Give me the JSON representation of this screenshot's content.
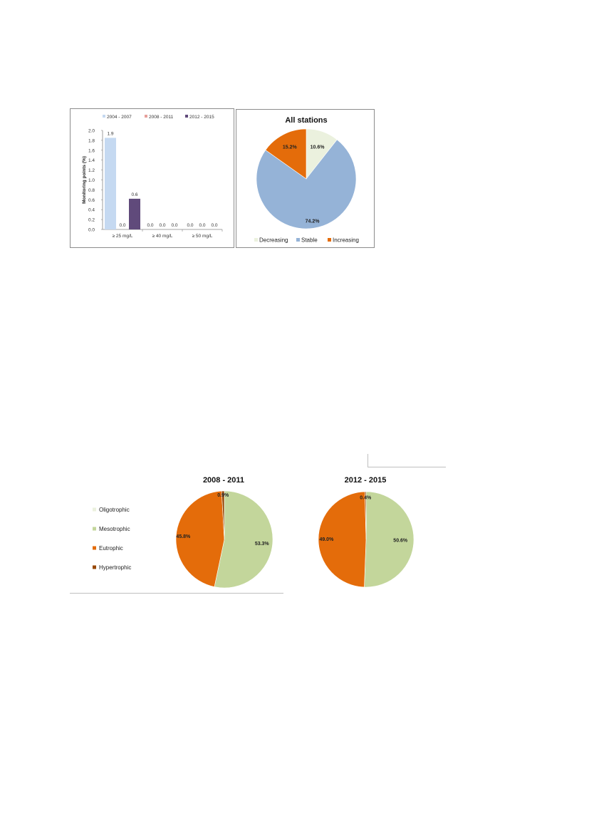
{
  "chart_data": [
    {
      "type": "bar",
      "categories": [
        "≥ 25 mg/L",
        "≥ 40 mg/L",
        "≥ 50 mg/L"
      ],
      "series": [
        {
          "name": "2004 - 2007",
          "color": "#c5d9f1",
          "values": [
            1.85,
            0.0,
            0.0
          ],
          "labels": [
            "1.9",
            "0.0",
            "0.0"
          ]
        },
        {
          "name": "2008 - 2011",
          "color": "#e6a09b",
          "values": [
            0.0,
            0.0,
            0.0
          ],
          "labels": [
            "0.0",
            "0.0",
            "0.0"
          ]
        },
        {
          "name": "2012 - 2015",
          "color": "#604a7b",
          "values": [
            0.62,
            0.0,
            0.0
          ],
          "labels": [
            "0.6",
            "0.0",
            "0.0"
          ]
        }
      ],
      "ylabel": "Monitoring points (%)",
      "ylim": [
        0,
        2.0
      ],
      "yticks": [
        "0.0",
        "0.2",
        "0.4",
        "0.6",
        "0.8",
        "1.0",
        "1.2",
        "1.4",
        "1.6",
        "1.8",
        "2.0"
      ],
      "legend_position": "top"
    },
    {
      "type": "pie",
      "title": "All stations",
      "slices": [
        {
          "label": "Decreasing",
          "value": 10.6,
          "text": "10.6%",
          "color": "#ebf1de"
        },
        {
          "label": "Stable",
          "value": 74.2,
          "text": "74.2%",
          "color": "#95b3d7"
        },
        {
          "label": "Increasing",
          "value": 15.2,
          "text": "15.2%",
          "color": "#e46c0a"
        }
      ],
      "legend_position": "bottom"
    },
    {
      "type": "pie",
      "title": "2008 - 2011",
      "slices": [
        {
          "label": "Oligotrophic",
          "value": 0.0,
          "text": "",
          "color": "#ebf1de"
        },
        {
          "label": "Mesotrophic",
          "value": 53.3,
          "text": "53.3%",
          "color": "#c3d69b"
        },
        {
          "label": "Eutrophic",
          "value": 45.8,
          "text": "45.8%",
          "color": "#e46c0a"
        },
        {
          "label": "Hypertrophic",
          "value": 0.9,
          "text": "0.9%",
          "color": "#974806"
        }
      ],
      "legend_position": "left"
    },
    {
      "type": "pie",
      "title": "2012 - 2015",
      "slices": [
        {
          "label": "Oligotrophic",
          "value": 0.0,
          "text": "",
          "color": "#ebf1de"
        },
        {
          "label": "Mesotrophic",
          "value": 50.6,
          "text": "50.6%",
          "color": "#c3d69b"
        },
        {
          "label": "Eutrophic",
          "value": 49.0,
          "text": "49.0%",
          "color": "#e46c0a"
        },
        {
          "label": "Hypertrophic",
          "value": 0.4,
          "text": "0.4%",
          "color": "#974806"
        }
      ]
    }
  ]
}
